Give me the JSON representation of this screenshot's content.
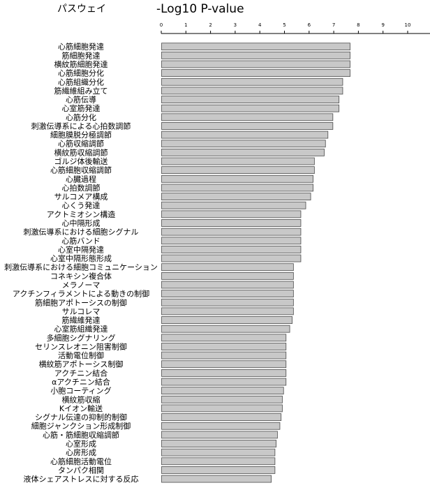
{
  "chart_data": {
    "type": "bar",
    "orientation": "horizontal",
    "category_header": "パスウェイ",
    "value_header": "-Log10 P-value",
    "xlim": [
      0,
      10
    ],
    "x_ticks": [
      "0",
      "1",
      "2",
      "3",
      "4",
      "5",
      "6",
      "7",
      "8",
      "9",
      "10"
    ],
    "grid": false,
    "legend": "none",
    "bar_color": "#c8c8c8",
    "bar_edge_color": "#4a4a4a",
    "categories": [
      "心筋細胞発達",
      "筋細胞発達",
      "横紋筋細胞発達",
      "心筋細胞分化",
      "心筋組織分化",
      "筋繊維組み立て",
      "心筋伝導",
      "心室筋発達",
      "心筋分化",
      "刺激伝導系による心拍数調節",
      "細胞膜脱分極調節",
      "心筋収縮調節",
      "横紋筋収縮調節",
      "ゴルジ体後輸送",
      "心筋細胞収縮調節",
      "心臓過程",
      "心拍数調節",
      "サルコメア構成",
      "心くう発達",
      "アクトミオシン構造",
      "心中隔形成",
      "刺激伝導系における細胞シグナル",
      "心筋バンド",
      "心室中隔発達",
      "心室中隔形態形成",
      "刺激伝導系における細胞コミュニケーション",
      "コネキシン複合体",
      "メラノーマ",
      "アクチンフィラメントによる動きの制御",
      "筋細胞アポトーシスの制御",
      "サルコレマ",
      "筋繊維発達",
      "心室筋組織発達",
      "多細胞シグナリング",
      "セリンスレオニン阻害制御",
      "活動電位制御",
      "横紋筋アポトーシス制御",
      "アクチニン結合",
      "αアクチニン結合",
      "小胞コーティング",
      "横紋筋収縮",
      "Kイオン輸送",
      "シグナル伝達の抑制的制御",
      "細胞ジャンクション形成制御",
      "心筋・筋細胞収縮調節",
      "心室形成",
      "心房形成",
      "心筋細胞活動電位",
      "タンパク相関",
      "液体シェアストレスに対する反応"
    ],
    "values": [
      7.65,
      7.65,
      7.65,
      7.65,
      7.35,
      7.35,
      7.2,
      7.2,
      6.95,
      6.95,
      6.75,
      6.65,
      6.6,
      6.2,
      6.2,
      6.15,
      6.15,
      6.05,
      5.85,
      5.65,
      5.65,
      5.65,
      5.65,
      5.65,
      5.65,
      5.35,
      5.35,
      5.35,
      5.35,
      5.35,
      5.35,
      5.3,
      5.2,
      5.05,
      5.05,
      5.05,
      5.05,
      5.05,
      5.05,
      4.95,
      4.9,
      4.9,
      4.85,
      4.8,
      4.7,
      4.65,
      4.6,
      4.6,
      4.6,
      4.45
    ]
  }
}
